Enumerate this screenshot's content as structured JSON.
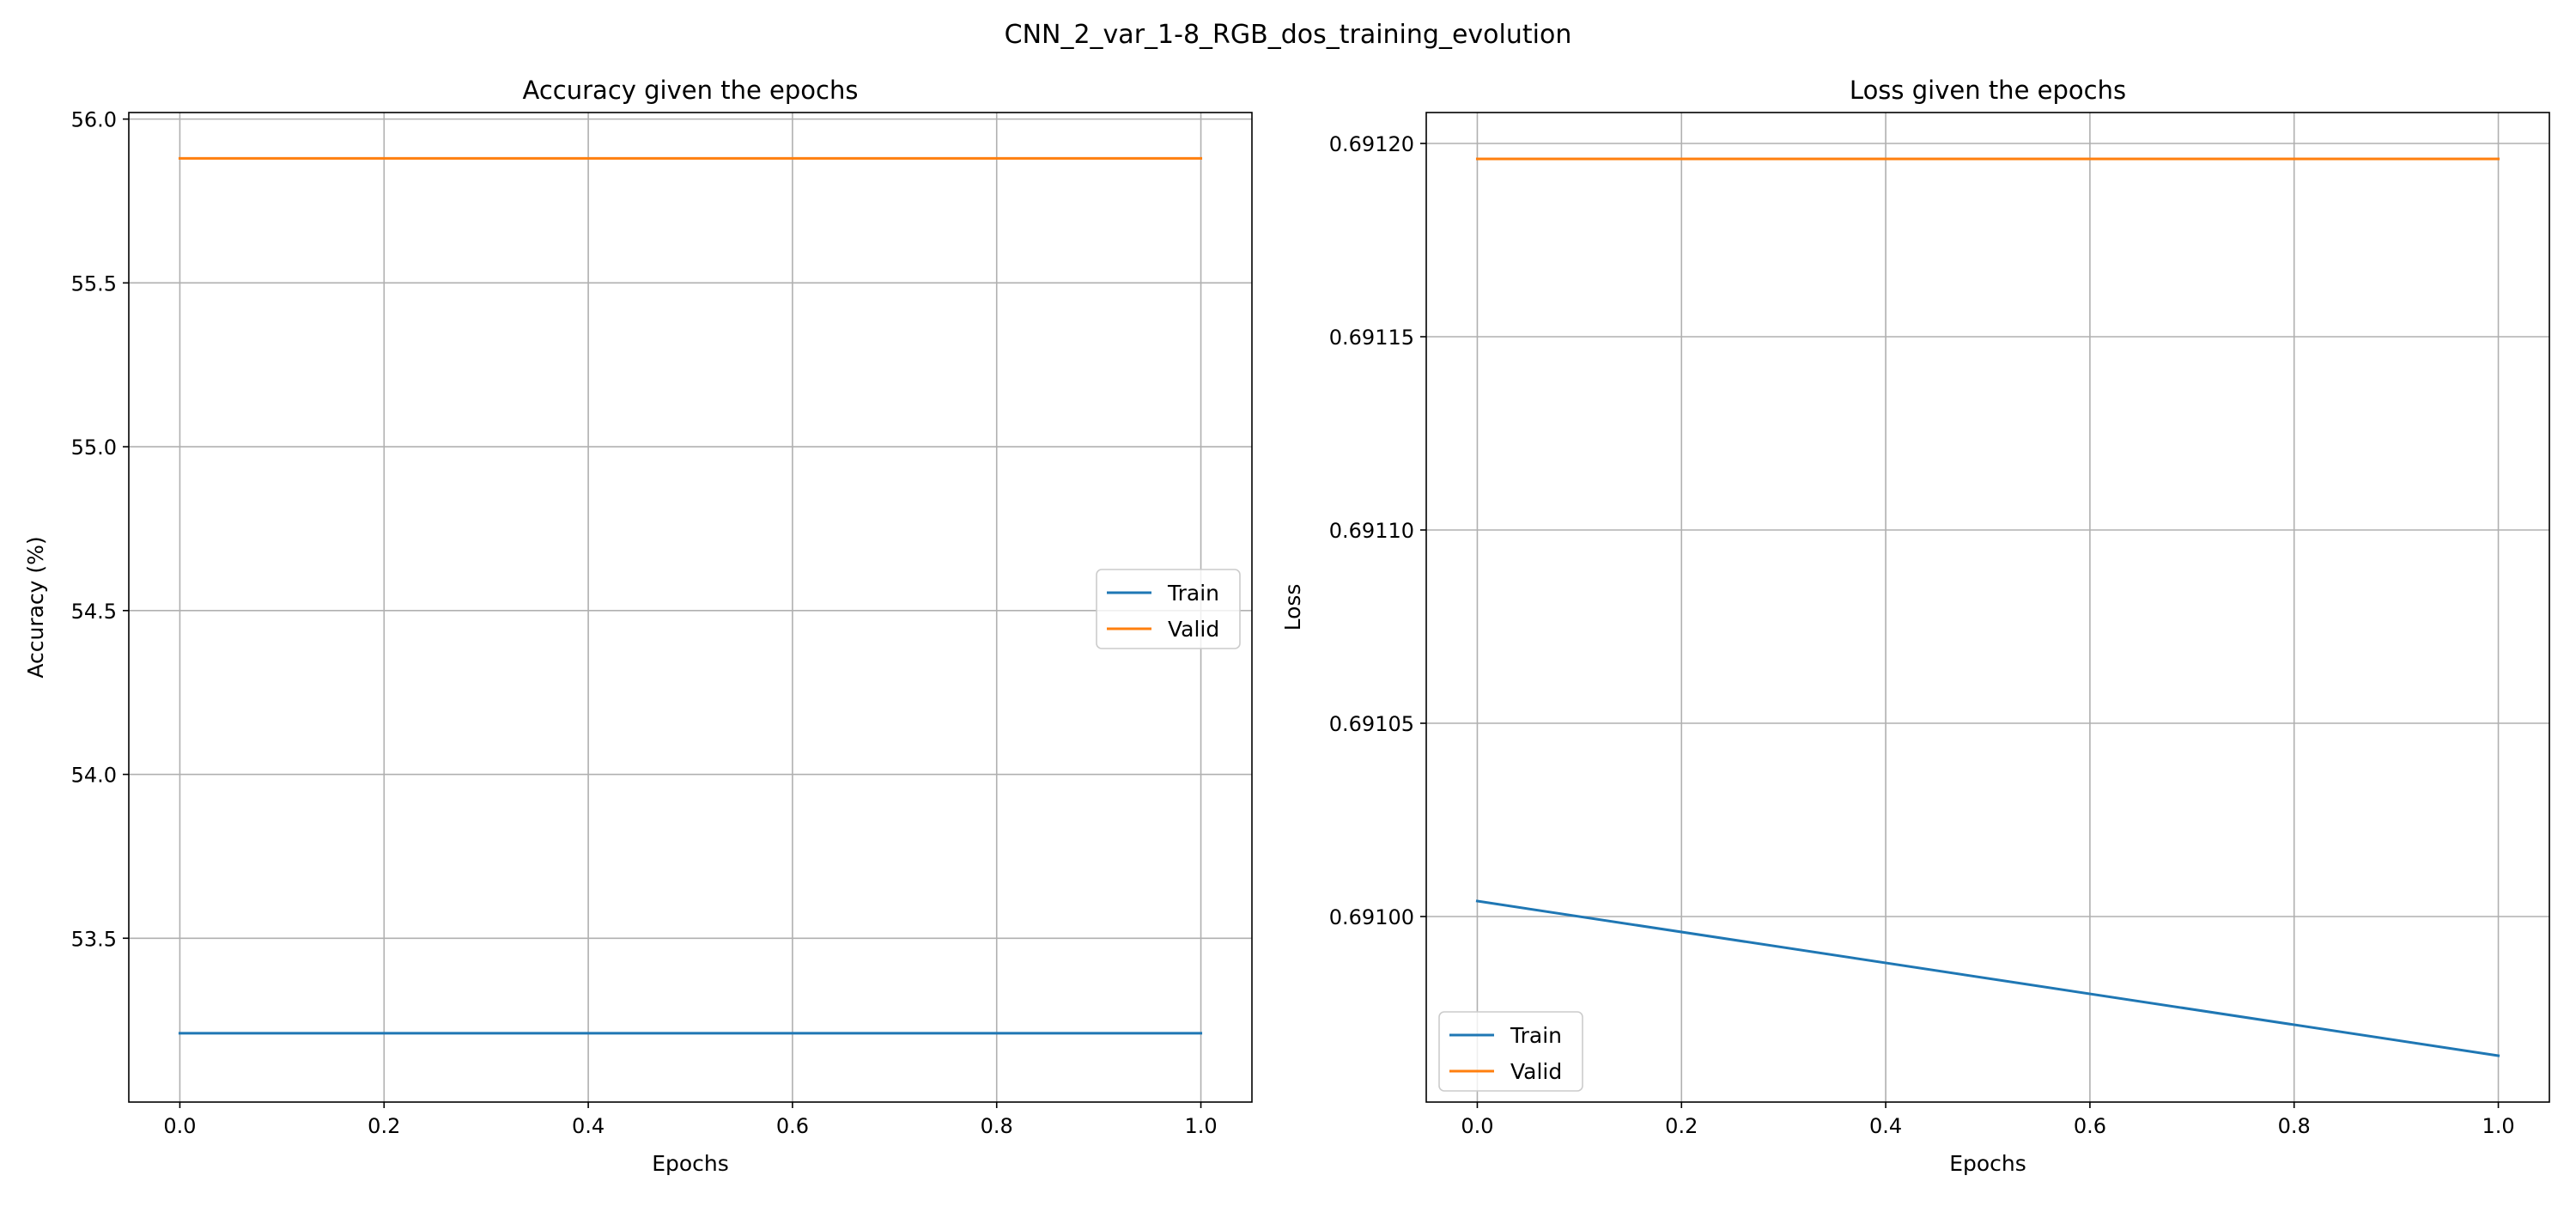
{
  "figure": {
    "title": "CNN_2_var_1-8_RGB_dos_training_evolution"
  },
  "colors": {
    "train": "#1f77b4",
    "valid": "#ff7f0e",
    "grid": "#b0b0b0",
    "axes": "#000000"
  },
  "chart_data": [
    {
      "type": "line",
      "title": "Accuracy given the epochs",
      "xlabel": "Epochs",
      "ylabel": "Accuracy (%)",
      "xlim": [
        -0.05,
        1.05
      ],
      "ylim": [
        53.0,
        56.02
      ],
      "xticks": [
        0.0,
        0.2,
        0.4,
        0.6,
        0.8,
        1.0
      ],
      "xtick_labels": [
        "0.0",
        "0.2",
        "0.4",
        "0.6",
        "0.8",
        "1.0"
      ],
      "yticks": [
        53.5,
        54.0,
        54.5,
        55.0,
        55.5,
        56.0
      ],
      "ytick_labels": [
        "53.5",
        "54.0",
        "54.5",
        "55.0",
        "55.5",
        "56.0"
      ],
      "grid": true,
      "legend_position": "center-right",
      "series": [
        {
          "name": "Train",
          "color_key": "train",
          "x": [
            0,
            1
          ],
          "y": [
            53.21,
            53.21
          ]
        },
        {
          "name": "Valid",
          "color_key": "valid",
          "x": [
            0,
            1
          ],
          "y": [
            55.88,
            55.88
          ]
        }
      ]
    },
    {
      "type": "line",
      "title": "Loss given the epochs",
      "xlabel": "Epochs",
      "ylabel": "Loss",
      "xlim": [
        -0.05,
        1.05
      ],
      "ylim": [
        0.690952,
        0.691208
      ],
      "xticks": [
        0.0,
        0.2,
        0.4,
        0.6,
        0.8,
        1.0
      ],
      "xtick_labels": [
        "0.0",
        "0.2",
        "0.4",
        "0.6",
        "0.8",
        "1.0"
      ],
      "yticks": [
        0.691,
        0.69105,
        0.6911,
        0.69115,
        0.6912
      ],
      "ytick_labels": [
        "0.69100",
        "0.69105",
        "0.69110",
        "0.69115",
        "0.69120"
      ],
      "grid": true,
      "legend_position": "lower-left",
      "series": [
        {
          "name": "Train",
          "color_key": "train",
          "x": [
            0,
            1
          ],
          "y": [
            0.691004,
            0.690964
          ]
        },
        {
          "name": "Valid",
          "color_key": "valid",
          "x": [
            0,
            1
          ],
          "y": [
            0.691196,
            0.691196
          ]
        }
      ]
    }
  ]
}
